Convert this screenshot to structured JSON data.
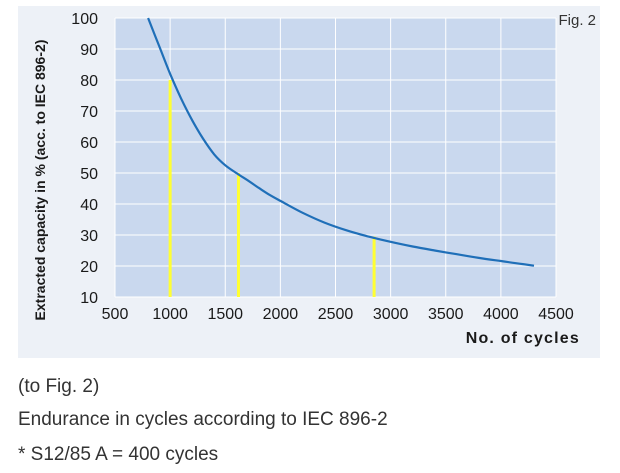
{
  "figure_label": "Fig. 2",
  "chart_data": {
    "type": "line",
    "title": "",
    "xlabel": "No. of cycles",
    "ylabel": "Extracted capacity  in % (acc. to IEC 896-2)",
    "xlim": [
      500,
      4500
    ],
    "ylim": [
      10,
      100
    ],
    "x_ticks": [
      "500",
      "1000",
      "1500",
      "2000",
      "2500",
      "3000",
      "3500",
      "4000",
      "4500"
    ],
    "y_ticks": [
      "100",
      "90",
      "80",
      "70",
      "60",
      "50",
      "40",
      "30",
      "20",
      "10"
    ],
    "grid": true,
    "series": [
      {
        "color": "#1f6fb8",
        "x": [
          800,
          900,
          1000,
          1100,
          1200,
          1300,
          1400,
          1500,
          1600,
          1700,
          1800,
          1900,
          2000,
          2200,
          2400,
          2600,
          2800,
          3000,
          3200,
          3400,
          3600,
          3800,
          4000,
          4200,
          4300
        ],
        "y": [
          100,
          91,
          82,
          74,
          67,
          61,
          56,
          52.5,
          50,
          47.7,
          45.3,
          43,
          41,
          37.2,
          34,
          31.5,
          29.5,
          27.8,
          26.3,
          25,
          23.8,
          22.6,
          21.6,
          20.6,
          20.1
        ]
      }
    ],
    "reference_lines": [
      {
        "x": 1000,
        "y": 80,
        "color": "#ffff33"
      },
      {
        "x": 1620,
        "y": 50,
        "color": "#ffff33"
      },
      {
        "x": 2850,
        "y": 29.5,
        "color": "#ffff33"
      }
    ]
  },
  "captions": {
    "line1": "(to Fig. 2)",
    "line2": "Endurance in cycles according to IEC 896-2",
    "line3": "* S12/85 A = 400 cycles"
  }
}
